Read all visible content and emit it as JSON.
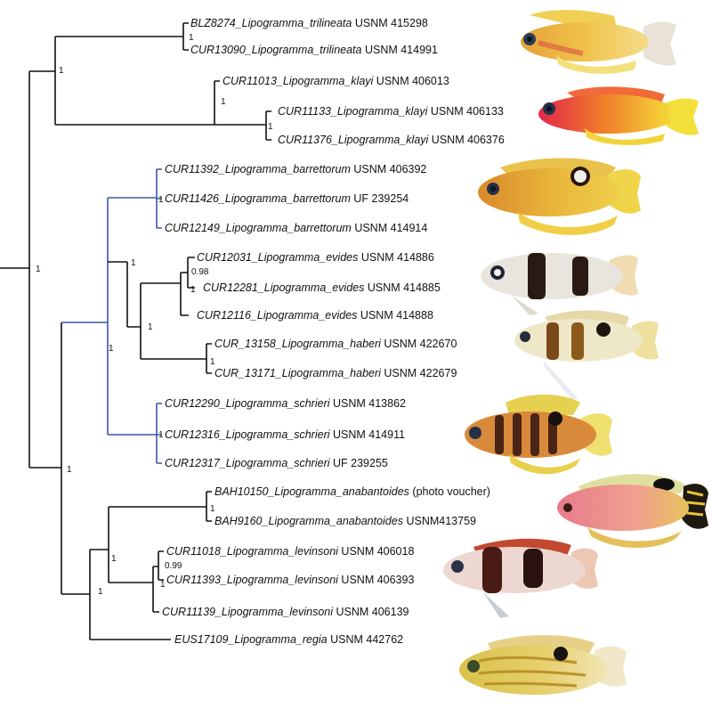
{
  "leaves": [
    {
      "id": "t1",
      "name": "BLZ8274_Lipogramma_trilineata",
      "voucher": "USNM 415298"
    },
    {
      "id": "t2",
      "name": "CUR13090_Lipogramma_trilineata",
      "voucher": "USNM 414991"
    },
    {
      "id": "k1",
      "name": "CUR11013_Lipogramma_klayi",
      "voucher": "USNM 406013"
    },
    {
      "id": "k2",
      "name": "CUR11133_Lipogramma_klayi",
      "voucher": "USNM 406133"
    },
    {
      "id": "k3",
      "name": "CUR11376_Lipogramma_klayi",
      "voucher": "USNM 406376"
    },
    {
      "id": "b1",
      "name": "CUR11392_Lipogramma_barrettorum",
      "voucher": "USNM 406392"
    },
    {
      "id": "b2",
      "name": "CUR11426_Lipogramma_barrettorum",
      "voucher": "UF 239254"
    },
    {
      "id": "b3",
      "name": "CUR12149_Lipogramma_barrettorum",
      "voucher": "USNM 414914"
    },
    {
      "id": "e1",
      "name": "CUR12031_Lipogramma_evides",
      "voucher": "USNM 414886"
    },
    {
      "id": "e2",
      "name": "CUR12281_Lipogramma_evides",
      "voucher": "USNM 414885"
    },
    {
      "id": "e3",
      "name": "CUR12116_Lipogramma_evides",
      "voucher": "USNM 414888"
    },
    {
      "id": "h1",
      "name": "CUR_13158_Lipogramma_haberi",
      "voucher": "USNM 422670"
    },
    {
      "id": "h2",
      "name": "CUR_13171_Lipogramma_haberi",
      "voucher": "USNM 422679"
    },
    {
      "id": "s1",
      "name": "CUR12290_Lipogramma_schrieri",
      "voucher": "USNM 413862"
    },
    {
      "id": "s2",
      "name": "CUR12316_Lipogramma_schrieri",
      "voucher": "USNM 414911"
    },
    {
      "id": "s3",
      "name": "CUR12317_Lipogramma_schrieri",
      "voucher": "UF 239255"
    },
    {
      "id": "a1",
      "name": "BAH10150_Lipogramma_anabantoides",
      "voucher": "(photo voucher)"
    },
    {
      "id": "a2",
      "name": "BAH9160_Lipogramma_anabantoides",
      "voucher": "USNM413759"
    },
    {
      "id": "l1",
      "name": "CUR11018_Lipogramma_levinsoni",
      "voucher": "USNM 406018"
    },
    {
      "id": "l2",
      "name": "CUR11393_Lipogramma_levinsoni",
      "voucher": "USNM 406393"
    },
    {
      "id": "l3",
      "name": "CUR11139_Lipogramma_levinsoni",
      "voucher": "USNM 406139"
    },
    {
      "id": "r1",
      "name": "EUS17109_Lipogramma_regia",
      "voucher": "USNM 442762"
    }
  ],
  "support": {
    "trilineata": "1",
    "klayi_pair": "1",
    "klayi": "1",
    "top_group": "1",
    "root": "1",
    "barrettorum": "1",
    "evides_pair": "0.98",
    "evides_in": "1",
    "evides": "1",
    "haberi": "1",
    "evides_haberi": "1",
    "eb_group": "1",
    "schrieri": "1",
    "blue_clade": "1",
    "mid_group": "1",
    "anabantoides": "1",
    "levinsoni_pair": "0.99",
    "levinsoni_in": "1",
    "lower_group": "1"
  },
  "colors": {
    "branch": "#111111",
    "highlight_clade": "#3b57a7"
  },
  "fish_images": [
    "trilineata-fish",
    "klayi-fish",
    "barrettorum-fish",
    "evides-fish",
    "haberi-fish",
    "schrieri-fish",
    "anabantoides-fish",
    "levinsoni-fish",
    "regia-fish"
  ]
}
